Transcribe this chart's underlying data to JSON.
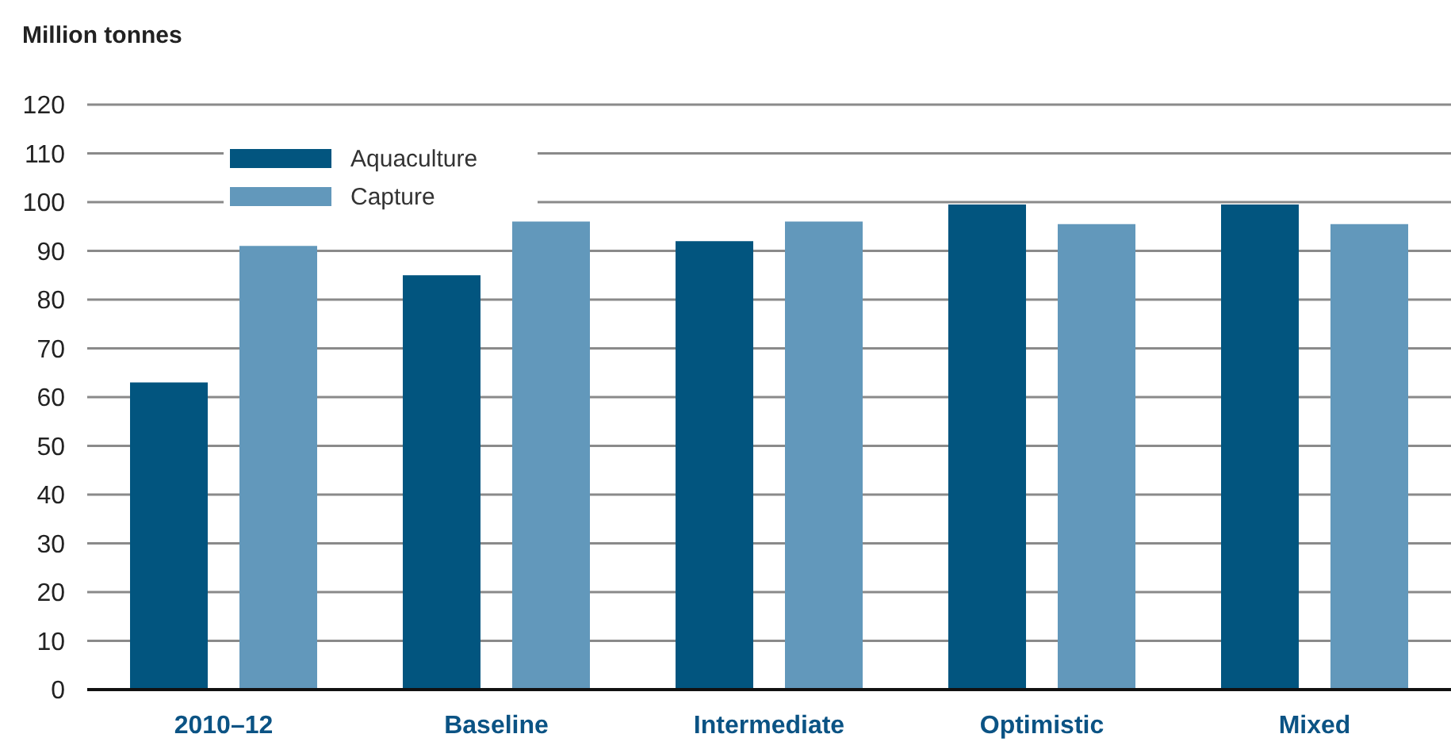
{
  "chart_data": {
    "type": "bar",
    "ylabel": "Million tonnes",
    "categories": [
      "2010–12",
      "Baseline",
      "Intermediate",
      "Optimistic",
      "Mixed"
    ],
    "series": [
      {
        "name": "Aquaculture",
        "color": "#02557f",
        "values": [
          63,
          85,
          92,
          99.5,
          99.5
        ]
      },
      {
        "name": "Capture",
        "color": "#6298bb",
        "values": [
          91,
          96,
          96,
          95.5,
          95.5
        ]
      }
    ],
    "ylim": [
      0,
      120
    ],
    "yticks": [
      0,
      10,
      20,
      30,
      40,
      50,
      60,
      70,
      80,
      90,
      100,
      110,
      120
    ],
    "grid": "y",
    "legend": "top left"
  }
}
